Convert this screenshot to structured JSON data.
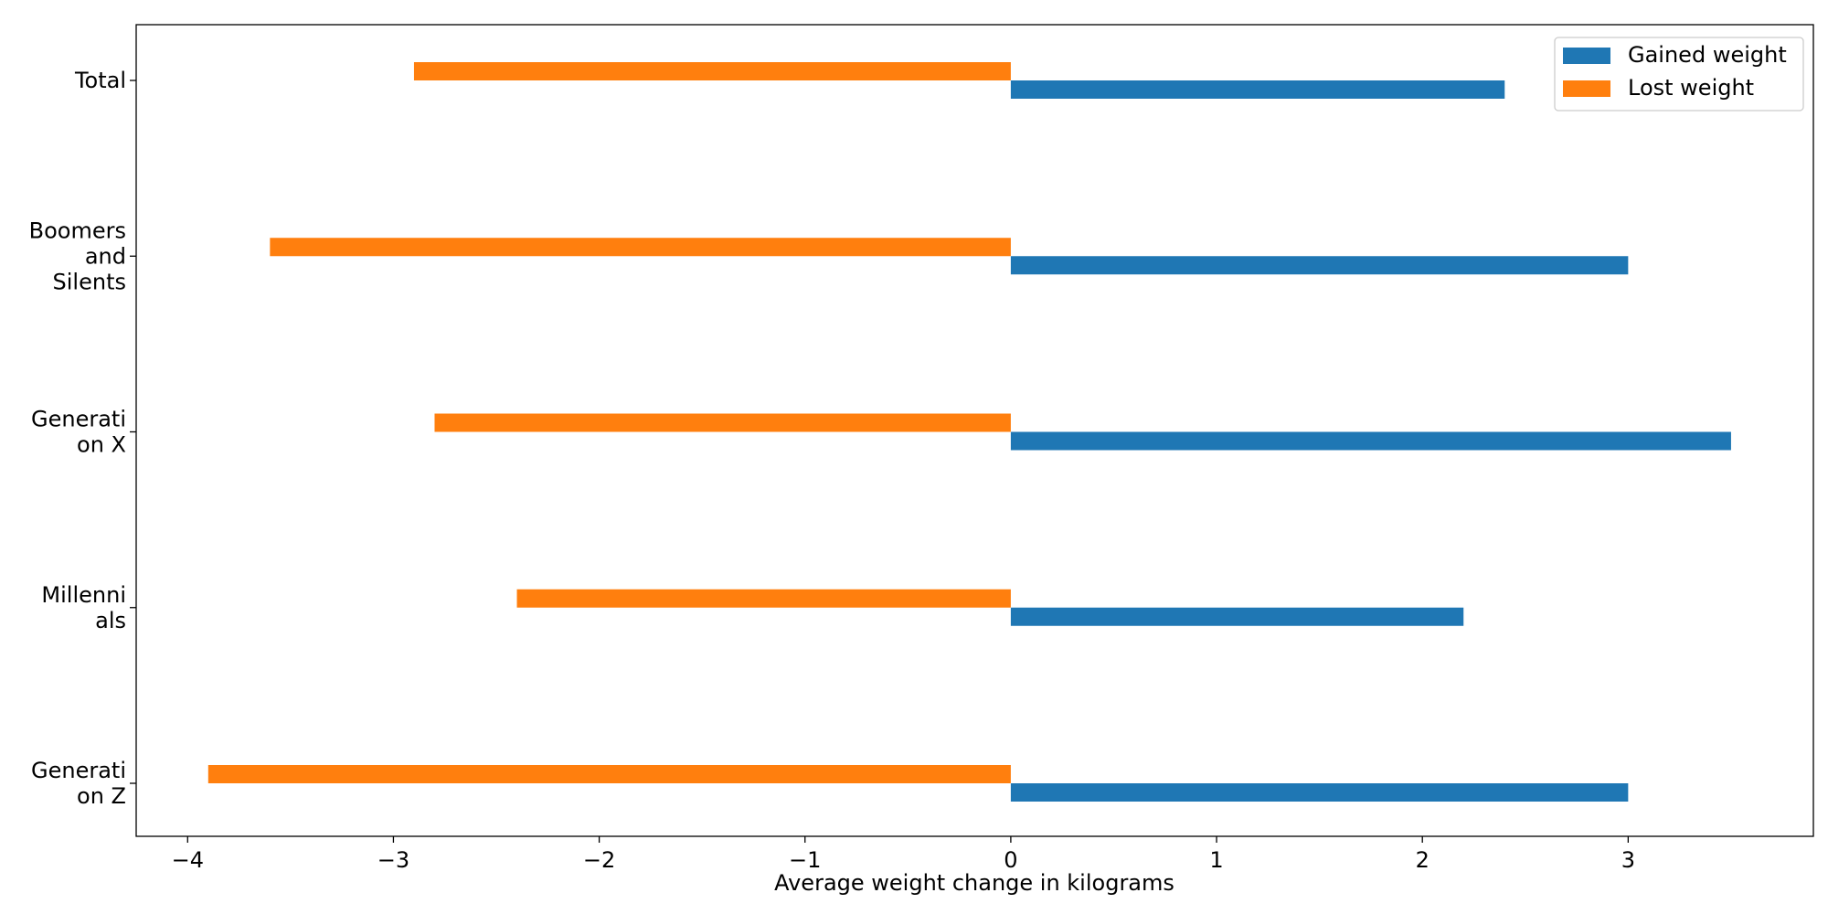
{
  "chart_data": {
    "type": "bar",
    "orientation": "horizontal",
    "categories": [
      [
        "Total"
      ],
      [
        "Boomers",
        "and",
        "Silents"
      ],
      [
        "Generati",
        "on X"
      ],
      [
        "Millenni",
        "als"
      ],
      [
        "Generati",
        "on Z"
      ]
    ],
    "series": [
      {
        "name": "Gained weight",
        "color": "#1f77b4",
        "values": [
          2.4,
          3.0,
          3.5,
          2.2,
          3.0
        ]
      },
      {
        "name": "Lost weight",
        "color": "#ff7f0e",
        "values": [
          -2.9,
          -3.6,
          -2.8,
          -2.4,
          -3.9
        ]
      }
    ],
    "xlabel": "Average weight change in kilograms",
    "ylabel": "",
    "xlim": [
      -4.25,
      3.9
    ],
    "xticks": [
      -4,
      -3,
      -2,
      -1,
      0,
      1,
      2,
      3
    ],
    "xtick_labels": [
      "−4",
      "−3",
      "−2",
      "−1",
      "0",
      "1",
      "2",
      "3"
    ],
    "grid": false,
    "legend_position": "top-right"
  }
}
